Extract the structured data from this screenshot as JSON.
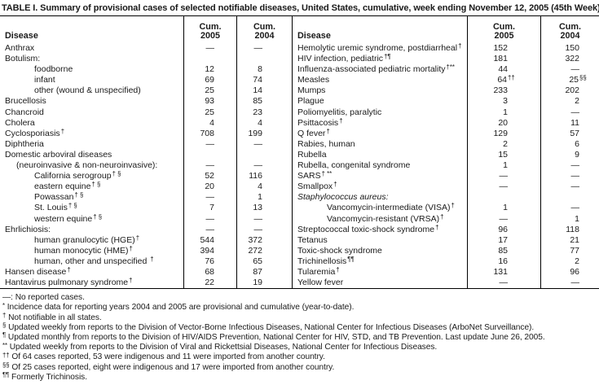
{
  "title": "TABLE I. Summary of provisional cases of selected notifiable diseases, United States, cumulative, week ending November 12, 2005 (45th Week)*",
  "table": {
    "header": {
      "disease": "Disease",
      "cum2005": "Cum.\n2005",
      "cum2004": "Cum.\n2004"
    },
    "rows": [
      {
        "l": {
          "t": "Anthrax"
        },
        "lv": [
          "—",
          "—"
        ],
        "r": {
          "t": "Hemolytic uremic syndrome, postdiarrheal",
          "s": "†"
        },
        "rv": [
          "152",
          "150"
        ]
      },
      {
        "l": {
          "t": "Botulism:"
        },
        "lv": [
          "",
          ""
        ],
        "r": {
          "t": "HIV infection, pediatric",
          "s": "†¶"
        },
        "rv": [
          "181",
          "322"
        ]
      },
      {
        "l": {
          "t": "foodborne",
          "i": 2
        },
        "lv": [
          "12",
          "8"
        ],
        "r": {
          "t": "Influenza-associated pediatric mortality",
          "s": "†**"
        },
        "rv": [
          "44",
          "—"
        ]
      },
      {
        "l": {
          "t": "infant",
          "i": 2
        },
        "lv": [
          "69",
          "74"
        ],
        "r": {
          "t": "Measles"
        },
        "rv": [
          {
            "t": "64",
            "s": "††"
          },
          {
            "t": "25",
            "s": "§§"
          }
        ]
      },
      {
        "l": {
          "t": "other (wound & unspecified)",
          "i": 2
        },
        "lv": [
          "25",
          "14"
        ],
        "r": {
          "t": "Mumps"
        },
        "rv": [
          "233",
          "202"
        ]
      },
      {
        "l": {
          "t": "Brucellosis"
        },
        "lv": [
          "93",
          "85"
        ],
        "r": {
          "t": "Plague"
        },
        "rv": [
          "3",
          "2"
        ]
      },
      {
        "l": {
          "t": "Chancroid"
        },
        "lv": [
          "25",
          "23"
        ],
        "r": {
          "t": "Poliomyelitis, paralytic"
        },
        "rv": [
          "1",
          "—"
        ]
      },
      {
        "l": {
          "t": "Cholera"
        },
        "lv": [
          "4",
          "4"
        ],
        "r": {
          "t": "Psittacosis",
          "s": "†"
        },
        "rv": [
          "20",
          "11"
        ]
      },
      {
        "l": {
          "t": "Cyclosporiasis",
          "s": "†"
        },
        "lv": [
          "708",
          "199"
        ],
        "r": {
          "t": "Q fever",
          "s": "†"
        },
        "rv": [
          "129",
          "57"
        ]
      },
      {
        "l": {
          "t": "Diphtheria"
        },
        "lv": [
          "—",
          "—"
        ],
        "r": {
          "t": "Rabies, human"
        },
        "rv": [
          "2",
          "6"
        ]
      },
      {
        "l": {
          "t": "Domestic arboviral diseases"
        },
        "lv": [
          "",
          ""
        ],
        "r": {
          "t": "Rubella"
        },
        "rv": [
          "15",
          "9"
        ]
      },
      {
        "l": {
          "t": "(neuroinvasive & non-neuroinvasive):",
          "i": 1
        },
        "lv": [
          "—",
          "—"
        ],
        "r": {
          "t": "Rubella, congenital syndrome"
        },
        "rv": [
          "1",
          "—"
        ]
      },
      {
        "l": {
          "t": "California serogroup",
          "s": "† §",
          "i": 2
        },
        "lv": [
          "52",
          "116"
        ],
        "r": {
          "t": "SARS",
          "s": "† **"
        },
        "rv": [
          "—",
          "—"
        ]
      },
      {
        "l": {
          "t": "eastern equine",
          "s": "† §",
          "i": 2
        },
        "lv": [
          "20",
          "4"
        ],
        "r": {
          "t": "Smallpox",
          "s": "†"
        },
        "rv": [
          "—",
          "—"
        ]
      },
      {
        "l": {
          "t": "Powassan",
          "s": "† §",
          "i": 2
        },
        "lv": [
          "—",
          "1"
        ],
        "r": {
          "t": "Staphylococcus aureus:",
          "it": true
        },
        "rv": [
          "",
          ""
        ]
      },
      {
        "l": {
          "t": "St. Louis",
          "s": "† §",
          "i": 2
        },
        "lv": [
          "7",
          "13"
        ],
        "r": {
          "t": "Vancomycin-intermediate (VISA)",
          "s": "†",
          "i": 2
        },
        "rv": [
          "1",
          "—"
        ]
      },
      {
        "l": {
          "t": "western equine",
          "s": "† §",
          "i": 2
        },
        "lv": [
          "—",
          "—"
        ],
        "r": {
          "t": "Vancomycin-resistant (VRSA)",
          "s": "†",
          "i": 2
        },
        "rv": [
          "—",
          "1"
        ]
      },
      {
        "l": {
          "t": "Ehrlichiosis:"
        },
        "lv": [
          "—",
          "—"
        ],
        "r": {
          "t": "Streptococcal toxic-shock syndrome",
          "s": "†"
        },
        "rv": [
          "96",
          "118"
        ]
      },
      {
        "l": {
          "t": "human granulocytic (HGE)",
          "s": "†",
          "i": 2
        },
        "lv": [
          "544",
          "372"
        ],
        "r": {
          "t": "Tetanus"
        },
        "rv": [
          "17",
          "21"
        ]
      },
      {
        "l": {
          "t": "human monocytic (HME)",
          "s": "†",
          "i": 2
        },
        "lv": [
          "394",
          "272"
        ],
        "r": {
          "t": "Toxic-shock syndrome"
        },
        "rv": [
          "85",
          "77"
        ]
      },
      {
        "l": {
          "t": "human, other and unspecified ",
          "s": "†",
          "i": 2
        },
        "lv": [
          "76",
          "65"
        ],
        "r": {
          "t": "Trichinellosis",
          "s": "¶¶"
        },
        "rv": [
          "16",
          "2"
        ]
      },
      {
        "l": {
          "t": "Hansen disease",
          "s": "†"
        },
        "lv": [
          "68",
          "87"
        ],
        "r": {
          "t": "Tularemia",
          "s": "†"
        },
        "rv": [
          "131",
          "96"
        ]
      },
      {
        "l": {
          "t": "Hantavirus pulmonary syndrome",
          "s": "†"
        },
        "lv": [
          "22",
          "19"
        ],
        "r": {
          "t": "Yellow fever"
        },
        "rv": [
          "—",
          "—"
        ]
      }
    ]
  },
  "footnotes": [
    {
      "m": "—:",
      "sup": false,
      "t": "No reported cases."
    },
    {
      "m": "*",
      "sup": true,
      "t": "Incidence data for reporting years 2004 and 2005 are provisional and cumulative (year-to-date)."
    },
    {
      "m": "†",
      "sup": true,
      "t": "Not notifiable in all states."
    },
    {
      "m": "§",
      "sup": true,
      "t": "Updated weekly from reports to the Division of Vector-Borne Infectious Diseases, National Center for Infectious Diseases (ArboNet Surveillance)."
    },
    {
      "m": "¶",
      "sup": true,
      "t": "Updated monthly from reports to the Division of HIV/AIDS Prevention, National Center for HIV, STD, and TB Prevention. Last update June 26, 2005."
    },
    {
      "m": "**",
      "sup": true,
      "t": "Updated weekly from reports to the Division of Viral and Rickettsial Diseases, National Center for Infectious Diseases."
    },
    {
      "m": "††",
      "sup": true,
      "t": "Of 64 cases reported, 53 were indigenous and 11 were imported from another country."
    },
    {
      "m": "§§",
      "sup": true,
      "t": "Of 25 cases reported, eight were indigenous and 17 were imported from another country."
    },
    {
      "m": "¶¶",
      "sup": true,
      "t": "Formerly Trichinosis."
    }
  ],
  "colors": {
    "text": "#1a1a1a",
    "rule": "#000000",
    "background": "#ffffff"
  }
}
